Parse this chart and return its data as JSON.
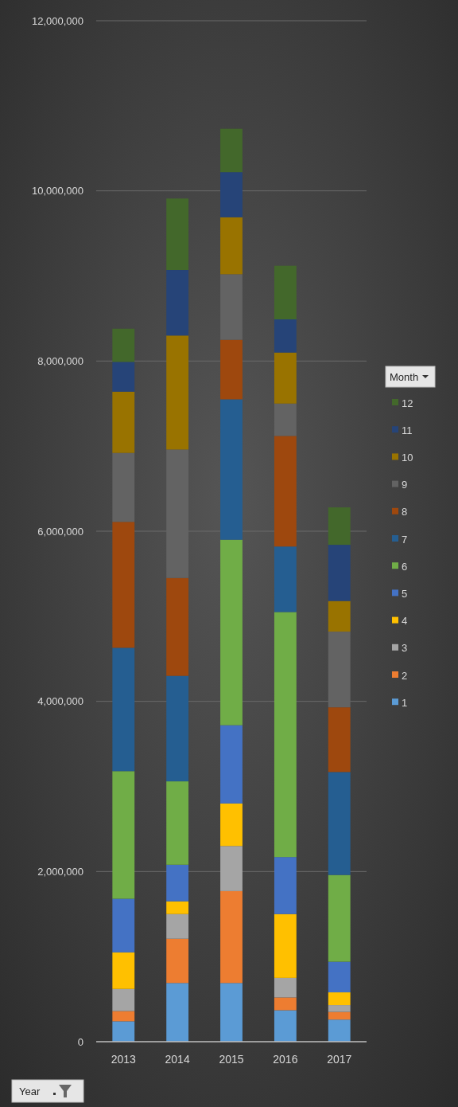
{
  "chart_data": {
    "type": "bar",
    "stacked": true,
    "xlabel": "Year",
    "legend_title": "Month",
    "legend": "right",
    "grid": "y",
    "categories": [
      "2013",
      "2014",
      "2015",
      "2016",
      "2017"
    ],
    "ylim": [
      0,
      12000000
    ],
    "yticks": [
      {
        "value": 0,
        "label": "0"
      },
      {
        "value": 2000000,
        "label": "2,000,000"
      },
      {
        "value": 4000000,
        "label": "4,000,000"
      },
      {
        "value": 6000000,
        "label": "6,000,000"
      },
      {
        "value": 8000000,
        "label": "8,000,000"
      },
      {
        "value": 10000000,
        "label": "10,000,000"
      },
      {
        "value": 12000000,
        "label": "12,000,000"
      }
    ],
    "series": [
      {
        "name": "1",
        "color": "#5b9bd5",
        "values": [
          240000,
          690000,
          690000,
          370000,
          260000
        ]
      },
      {
        "name": "2",
        "color": "#ed7d31",
        "values": [
          120000,
          520000,
          1080000,
          150000,
          90000
        ]
      },
      {
        "name": "3",
        "color": "#a5a5a5",
        "values": [
          260000,
          290000,
          530000,
          230000,
          80000
        ]
      },
      {
        "name": "4",
        "color": "#ffc000",
        "values": [
          430000,
          150000,
          500000,
          750000,
          150000
        ]
      },
      {
        "name": "5",
        "color": "#4472c4",
        "values": [
          630000,
          430000,
          920000,
          670000,
          360000
        ]
      },
      {
        "name": "6",
        "color": "#70ad47",
        "values": [
          1500000,
          980000,
          2180000,
          2880000,
          1020000
        ]
      },
      {
        "name": "7",
        "color": "#255e91",
        "values": [
          1450000,
          1240000,
          1650000,
          770000,
          1210000
        ]
      },
      {
        "name": "8",
        "color": "#9e480e",
        "values": [
          1480000,
          1150000,
          700000,
          1300000,
          760000
        ]
      },
      {
        "name": "9",
        "color": "#636363",
        "values": [
          810000,
          1510000,
          770000,
          380000,
          890000
        ]
      },
      {
        "name": "10",
        "color": "#997300",
        "values": [
          720000,
          1340000,
          670000,
          600000,
          360000
        ]
      },
      {
        "name": "11",
        "color": "#264478",
        "values": [
          350000,
          770000,
          530000,
          390000,
          660000
        ]
      },
      {
        "name": "12",
        "color": "#43682b",
        "values": [
          390000,
          840000,
          510000,
          630000,
          440000
        ]
      }
    ]
  }
}
